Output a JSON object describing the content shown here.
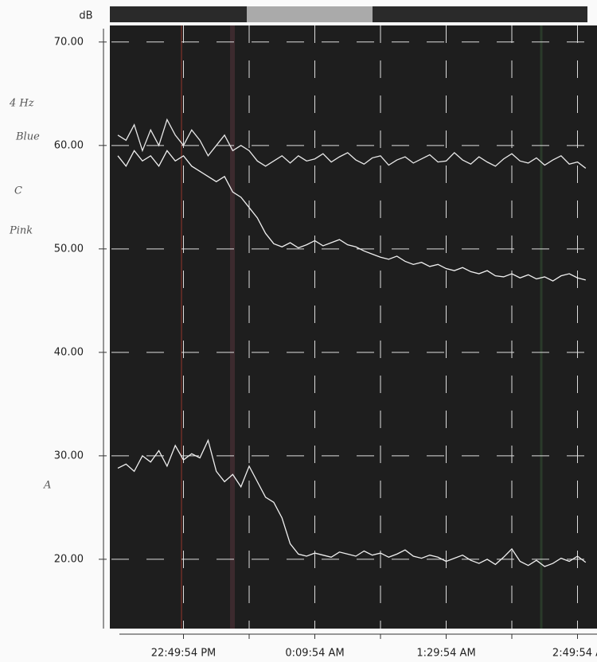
{
  "chart_data": {
    "type": "line",
    "ylabel": "dB",
    "annotations": [
      "4 Hz",
      "Blue",
      "C",
      "Pink",
      "A"
    ],
    "categories": [
      null,
      null,
      null,
      null,
      null,
      null,
      null,
      null,
      "22:49:54 PM",
      null,
      null,
      null,
      null,
      null,
      null,
      null,
      null,
      null,
      null,
      null,
      null,
      null,
      null,
      null,
      "0:09:54 AM",
      null,
      null,
      null,
      null,
      null,
      null,
      null,
      null,
      null,
      null,
      null,
      null,
      null,
      null,
      null,
      "1:29:54 AM",
      null,
      null,
      null,
      null,
      null,
      null,
      null,
      null,
      null,
      null,
      null,
      null,
      null,
      null,
      null,
      "2:49:54 A",
      null
    ],
    "series": [
      {
        "color": "#e8e8e8",
        "values": [
          61,
          60.5,
          62,
          59.5,
          61.5,
          60,
          62.5,
          61,
          60,
          61.5,
          60.5,
          59,
          60,
          61,
          59.5,
          60,
          59.5,
          58.5,
          58,
          58.5,
          59,
          58.3,
          59,
          58.5,
          58.7,
          59.2,
          58.4,
          58.9,
          59.3,
          58.6,
          58.2,
          58.8,
          59,
          58.1,
          58.6,
          58.9,
          58.3,
          58.7,
          59.1,
          58.4,
          58.5,
          59.3,
          58.6,
          58.2,
          58.9,
          58.4,
          58,
          58.7,
          59.2,
          58.5,
          58.3,
          58.8,
          58.1,
          58.6,
          59,
          58.2,
          58.4,
          57.8
        ]
      },
      {
        "color": "#f0f0f0",
        "values": [
          59,
          58,
          59.5,
          58.5,
          59,
          58,
          59.5,
          58.5,
          59,
          58,
          57.5,
          57,
          56.5,
          57,
          55.5,
          55,
          54,
          53,
          51.5,
          50.5,
          50.2,
          50.6,
          50.1,
          50.4,
          50.8,
          50.3,
          50.6,
          50.9,
          50.4,
          50.2,
          49.8,
          49.5,
          49.2,
          49,
          49.3,
          48.8,
          48.5,
          48.7,
          48.3,
          48.5,
          48.1,
          47.9,
          48.2,
          47.8,
          47.6,
          47.9,
          47.4,
          47.3,
          47.6,
          47.2,
          47.5,
          47.1,
          47.3,
          46.9,
          47.4,
          47.6,
          47.2,
          47.0
        ]
      },
      {
        "color": "#f0f0f0",
        "values": [
          28.8,
          29.2,
          28.5,
          30,
          29.4,
          30.5,
          29,
          31,
          29.6,
          30.2,
          29.8,
          31.5,
          28.5,
          27.5,
          28.2,
          27,
          29,
          27.5,
          26,
          25.5,
          24,
          21.5,
          20.5,
          20.3,
          20.6,
          20.4,
          20.2,
          20.7,
          20.5,
          20.3,
          20.8,
          20.4,
          20.6,
          20.2,
          20.5,
          20.9,
          20.3,
          20.1,
          20.4,
          20.2,
          19.8,
          20.1,
          20.4,
          19.9,
          19.6,
          20,
          19.5,
          20.2,
          21,
          19.8,
          19.4,
          19.9,
          19.3,
          19.6,
          20.1,
          19.8,
          20.3,
          19.7
        ]
      }
    ],
    "ylim": [
      13.3,
      71.6
    ],
    "yticks": [
      {
        "value": 20,
        "label": "20.00"
      },
      {
        "value": 30,
        "label": "30.00"
      },
      {
        "value": 40,
        "label": "40.00"
      },
      {
        "value": 50,
        "label": "50.00"
      },
      {
        "value": 60,
        "label": "60.00"
      },
      {
        "value": 70,
        "label": "70.00"
      }
    ],
    "grid": true
  }
}
